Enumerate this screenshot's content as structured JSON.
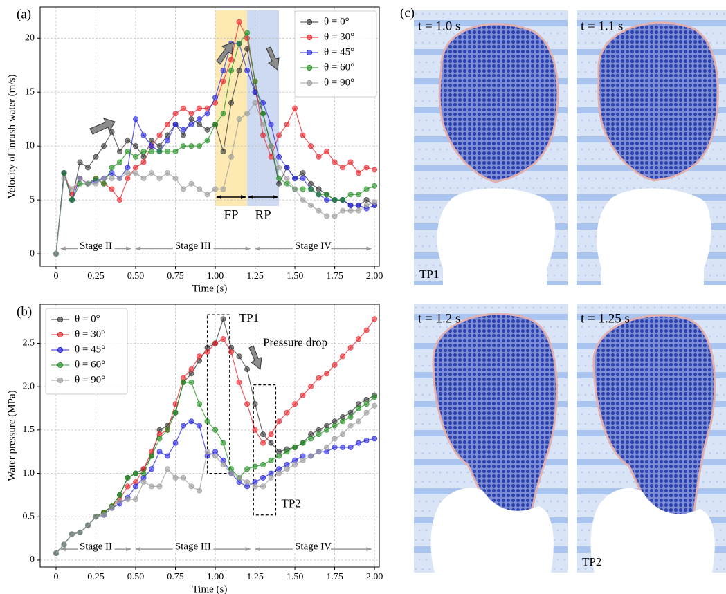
{
  "chart_data": [
    {
      "type": "line",
      "panel_label": "(a)",
      "x_label": "Time (s)",
      "y_label": "Velocity of inrush water (m/s)",
      "x": [
        0,
        0.05,
        0.1,
        0.15,
        0.2,
        0.25,
        0.3,
        0.35,
        0.4,
        0.45,
        0.5,
        0.55,
        0.6,
        0.65,
        0.7,
        0.75,
        0.8,
        0.85,
        0.9,
        0.95,
        1.0,
        1.05,
        1.1,
        1.15,
        1.2,
        1.25,
        1.3,
        1.35,
        1.4,
        1.45,
        1.5,
        1.55,
        1.6,
        1.65,
        1.7,
        1.75,
        1.8,
        1.85,
        1.9,
        1.95,
        2.0
      ],
      "series": [
        {
          "name": "θ = 0°",
          "color": "#333333",
          "values": [
            0,
            7.5,
            5,
            8.5,
            8,
            9,
            10,
            11.3,
            9.5,
            10.5,
            10,
            9,
            10.5,
            10,
            11,
            12,
            11,
            12.5,
            12,
            11.5,
            12,
            9.5,
            14,
            17,
            19,
            15,
            13,
            10,
            6.5,
            8,
            7,
            7.5,
            6.5,
            6,
            5.5,
            5,
            5,
            4.5,
            4.5,
            5,
            4.5
          ]
        },
        {
          "name": "θ = 30°",
          "color": "#e8222a",
          "values": [
            0,
            7.5,
            5.5,
            7,
            6.5,
            7,
            6.5,
            6,
            5,
            7,
            8,
            8.5,
            10,
            11,
            12,
            13,
            13.5,
            13,
            13.5,
            13.5,
            14,
            16,
            18,
            21.5,
            20,
            16,
            11,
            9,
            11,
            12,
            13.5,
            11,
            10,
            9,
            9.5,
            8.5,
            8,
            8.5,
            7.5,
            8,
            7.8
          ]
        },
        {
          "name": "θ = 45°",
          "color": "#2424e0",
          "values": [
            0,
            7.5,
            5,
            7,
            6.5,
            6.8,
            7,
            7.5,
            7,
            8,
            12.5,
            11,
            10,
            9.5,
            10.5,
            12,
            11.5,
            12,
            12.5,
            13,
            14.5,
            17,
            19.5,
            19.5,
            17,
            15,
            14,
            12,
            9,
            8,
            7,
            7,
            6,
            5.5,
            5,
            5,
            5,
            4.5,
            4.5,
            4.2,
            4.5
          ]
        },
        {
          "name": "θ = 60°",
          "color": "#1f8f1f",
          "values": [
            0,
            7.5,
            5,
            6.5,
            6.5,
            7,
            6.5,
            8,
            8.5,
            9.5,
            9,
            9.5,
            9.5,
            9.5,
            9.5,
            9.5,
            10,
            10,
            10,
            10.5,
            12,
            13,
            17,
            19.5,
            20.5,
            16,
            13,
            10,
            7,
            6.5,
            6,
            6,
            6,
            5.5,
            5.5,
            5,
            5,
            5.5,
            5.5,
            6,
            6.3
          ]
        },
        {
          "name": "θ = 90°",
          "color": "#999999",
          "values": [
            0,
            7,
            6,
            7,
            6.5,
            6.5,
            7,
            7,
            7,
            7.5,
            7.5,
            7,
            7.5,
            7,
            7.5,
            7,
            6,
            6.5,
            6,
            5.5,
            6,
            6,
            9,
            12.5,
            13,
            14,
            12,
            10,
            8,
            7,
            6,
            5,
            4.5,
            4,
            3.5,
            3.5,
            4,
            4,
            4,
            4.5,
            4.8
          ]
        }
      ],
      "xlim": [
        -0.1,
        2.03
      ],
      "xticks": [
        0,
        0.25,
        {
          "value": 0.5,
          "label": "0.50"
        },
        0.75,
        {
          "value": 1,
          "label": "1.00"
        },
        1.25,
        {
          "value": 1.5,
          "label": "1.50"
        },
        1.75,
        {
          "value": 2,
          "label": "2.00"
        }
      ],
      "ylim": [
        -1.15,
        22.9
      ],
      "yticks": [
        0,
        5,
        10,
        15,
        20
      ],
      "grid": true,
      "legend": "upper right",
      "spans": [
        {
          "label": "FP",
          "from": 1.0,
          "to": 1.2,
          "color": "#fde6a6"
        },
        {
          "label": "RP",
          "from": 1.2,
          "to": 1.4,
          "color": "#c4d3ef"
        }
      ],
      "stages": [
        {
          "label": "Stage II",
          "from": 0.03,
          "to": 0.47
        },
        {
          "label": "Stage III",
          "from": 0.5,
          "to": 1.22
        },
        {
          "label": "Stage IV",
          "from": 1.25,
          "to": 1.98
        }
      ]
    },
    {
      "type": "line",
      "panel_label": "(b)",
      "x_label": "Time (s)",
      "y_label": "Water pressure (MPa)",
      "x": [
        0,
        0.05,
        0.1,
        0.15,
        0.2,
        0.25,
        0.3,
        0.35,
        0.4,
        0.45,
        0.5,
        0.55,
        0.6,
        0.65,
        0.7,
        0.75,
        0.8,
        0.85,
        0.9,
        0.95,
        1.0,
        1.05,
        1.1,
        1.15,
        1.2,
        1.25,
        1.3,
        1.35,
        1.4,
        1.45,
        1.5,
        1.55,
        1.6,
        1.65,
        1.7,
        1.75,
        1.8,
        1.85,
        1.9,
        1.95,
        2.0
      ],
      "series": [
        {
          "name": "θ = 0°",
          "color": "#333333",
          "values": [
            0.08,
            0.18,
            0.3,
            0.32,
            0.4,
            0.5,
            0.55,
            0.62,
            0.75,
            0.95,
            1.0,
            1.05,
            1.2,
            1.5,
            1.55,
            1.7,
            2.05,
            2.15,
            2.3,
            2.45,
            2.5,
            2.78,
            2.45,
            2.35,
            2.2,
            1.8,
            1.45,
            1.35,
            1.25,
            1.28,
            1.3,
            1.35,
            1.45,
            1.5,
            1.55,
            1.6,
            1.65,
            1.7,
            1.8,
            1.85,
            1.9
          ]
        },
        {
          "name": "θ = 30°",
          "color": "#e8222a",
          "values": [
            0.08,
            0.18,
            0.3,
            0.32,
            0.4,
            0.5,
            0.55,
            0.62,
            0.7,
            0.85,
            0.9,
            1.05,
            1.25,
            1.45,
            1.5,
            1.8,
            2.1,
            2.2,
            2.35,
            2.4,
            2.5,
            2.55,
            2.4,
            2.05,
            1.8,
            1.5,
            1.35,
            1.45,
            1.6,
            1.7,
            1.8,
            1.9,
            2.0,
            2.1,
            2.15,
            2.25,
            2.35,
            2.45,
            2.55,
            2.65,
            2.78
          ]
        },
        {
          "name": "θ = 45°",
          "color": "#2424e0",
          "values": [
            0.08,
            0.18,
            0.3,
            0.32,
            0.4,
            0.5,
            0.52,
            0.6,
            0.65,
            0.72,
            0.85,
            0.95,
            1.05,
            1.25,
            1.2,
            1.35,
            1.55,
            1.6,
            1.55,
            1.2,
            1.25,
            1.15,
            1.0,
            0.9,
            0.85,
            0.9,
            0.95,
            1.0,
            1.05,
            1.1,
            1.15,
            1.2,
            1.2,
            1.25,
            1.25,
            1.3,
            1.3,
            1.3,
            1.35,
            1.38,
            1.4
          ]
        },
        {
          "name": "θ = 60°",
          "color": "#1f8f1f",
          "values": [
            0.08,
            0.18,
            0.3,
            0.32,
            0.4,
            0.5,
            0.55,
            0.62,
            0.75,
            0.95,
            1.0,
            1.0,
            1.2,
            1.4,
            1.5,
            1.7,
            2.05,
            2.05,
            1.8,
            1.6,
            1.5,
            1.35,
            1.05,
            0.95,
            1.05,
            1.08,
            1.1,
            1.15,
            1.2,
            1.25,
            1.3,
            1.35,
            1.4,
            1.45,
            1.5,
            1.55,
            1.6,
            1.65,
            1.75,
            1.8,
            1.88
          ]
        },
        {
          "name": "θ = 90°",
          "color": "#999999",
          "values": [
            0.08,
            0.18,
            0.3,
            0.32,
            0.4,
            0.5,
            0.52,
            0.6,
            0.68,
            0.7,
            0.7,
            0.9,
            0.85,
            0.85,
            1.05,
            0.95,
            0.95,
            0.85,
            0.8,
            1.25,
            1.2,
            1.1,
            1.0,
            0.95,
            0.9,
            0.85,
            0.85,
            0.95,
            1.0,
            1.05,
            1.1,
            1.15,
            1.2,
            1.25,
            1.3,
            1.4,
            1.45,
            1.55,
            1.6,
            1.7,
            1.78
          ]
        }
      ],
      "xlim": [
        -0.1,
        2.03
      ],
      "xticks": [
        0,
        0.25,
        {
          "value": 0.5,
          "label": "0.50"
        },
        0.75,
        {
          "value": 1,
          "label": "1.00"
        },
        1.25,
        {
          "value": 1.5,
          "label": "1.50"
        },
        1.75,
        {
          "value": 2,
          "label": "2.00"
        }
      ],
      "ylim": [
        -0.08,
        2.95
      ],
      "yticks": [
        0,
        0.5,
        {
          "value": 1,
          "label": "1.0"
        },
        1.5,
        {
          "value": 2,
          "label": "2.0"
        },
        2.5
      ],
      "grid": true,
      "legend": "upper left",
      "boxes": [
        {
          "label": "TP1",
          "x": [
            0.95,
            1.09
          ],
          "y": [
            1.0,
            2.83
          ]
        },
        {
          "label": "TP2",
          "x": [
            1.24,
            1.38
          ],
          "y": [
            0.52,
            2.02
          ]
        }
      ],
      "annotation": "Pressure drop",
      "stages": [
        {
          "label": "Stage II",
          "from": 0.03,
          "to": 0.47
        },
        {
          "label": "Stage III",
          "from": 0.5,
          "to": 1.22
        },
        {
          "label": "Stage IV",
          "from": 1.25,
          "to": 1.98
        }
      ]
    }
  ],
  "panel_c": {
    "label": "(c)",
    "frames": [
      {
        "time": "t = 1.0 s",
        "tag": "TP1"
      },
      {
        "time": "t = 1.1 s"
      },
      {
        "time": "t = 1.2 s"
      },
      {
        "time": "t = 1.25 s",
        "tag": "TP2"
      }
    ]
  }
}
